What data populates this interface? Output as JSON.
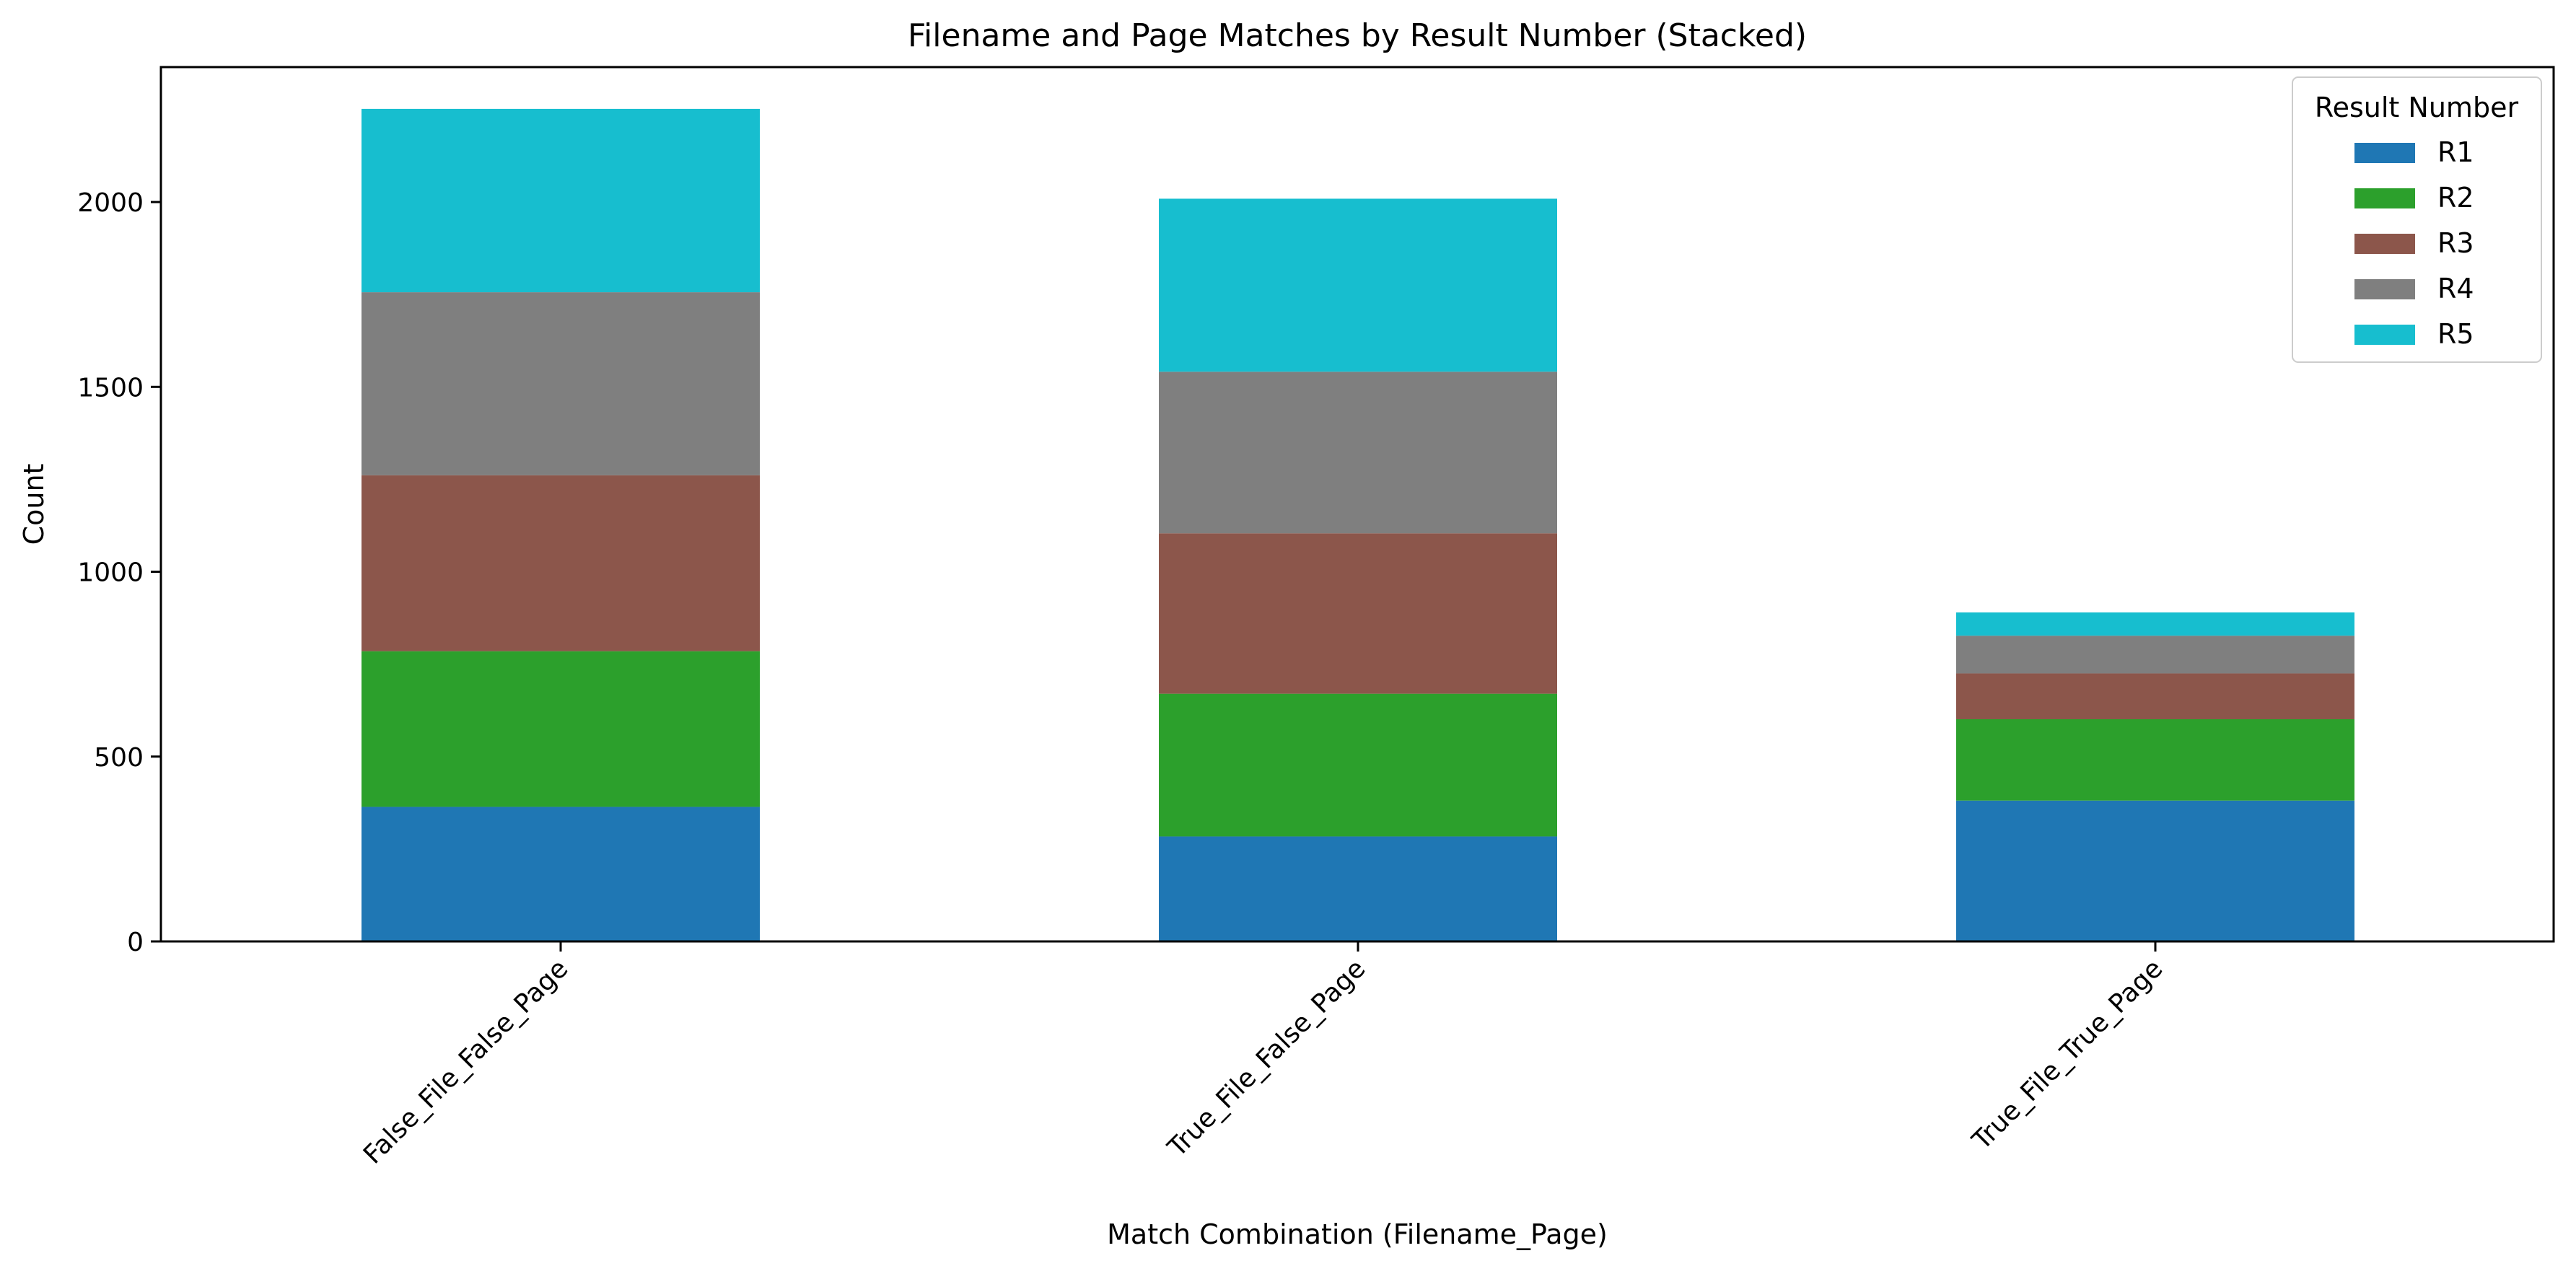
{
  "chart_data": {
    "type": "bar",
    "stacked": true,
    "title": "Filename and Page Matches by Result Number (Stacked)",
    "xlabel": "Match Combination (Filename_Page)",
    "ylabel": "Count",
    "categories": [
      "False_File_False_Page",
      "True_File_False_Page",
      "True_File_True_Page"
    ],
    "yticks": [
      0,
      500,
      1000,
      1500,
      2000
    ],
    "ylim": [
      0,
      2365
    ],
    "legend": {
      "title": "Result Number",
      "placement": "top-right"
    },
    "grid": false,
    "series": [
      {
        "name": "R1",
        "color": "#1f77b4",
        "values": [
          364,
          284,
          381
        ]
      },
      {
        "name": "R2",
        "color": "#2ca02c",
        "values": [
          421,
          386,
          220
        ]
      },
      {
        "name": "R3",
        "color": "#8c564b",
        "values": [
          476,
          434,
          124
        ]
      },
      {
        "name": "R4",
        "color": "#7f7f7f",
        "values": [
          495,
          437,
          102
        ]
      },
      {
        "name": "R5",
        "color": "#17becf",
        "values": [
          496,
          468,
          63
        ]
      }
    ]
  }
}
